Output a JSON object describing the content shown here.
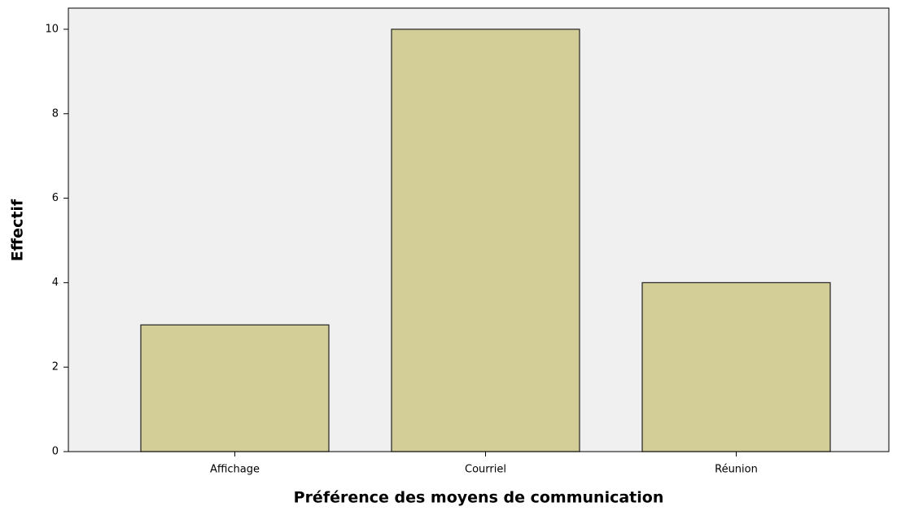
{
  "chart_data": {
    "type": "bar",
    "xlabel": "Préférence des moyens de communication",
    "ylabel": "Effectif",
    "categories": [
      "Affichage",
      "Courriel",
      "Réunion"
    ],
    "values": [
      3,
      10,
      4
    ],
    "color": "#d3ce97",
    "ylim": [
      0,
      10.5
    ],
    "yticks": [
      0,
      2,
      4,
      6,
      8,
      10
    ],
    "grid": false
  }
}
